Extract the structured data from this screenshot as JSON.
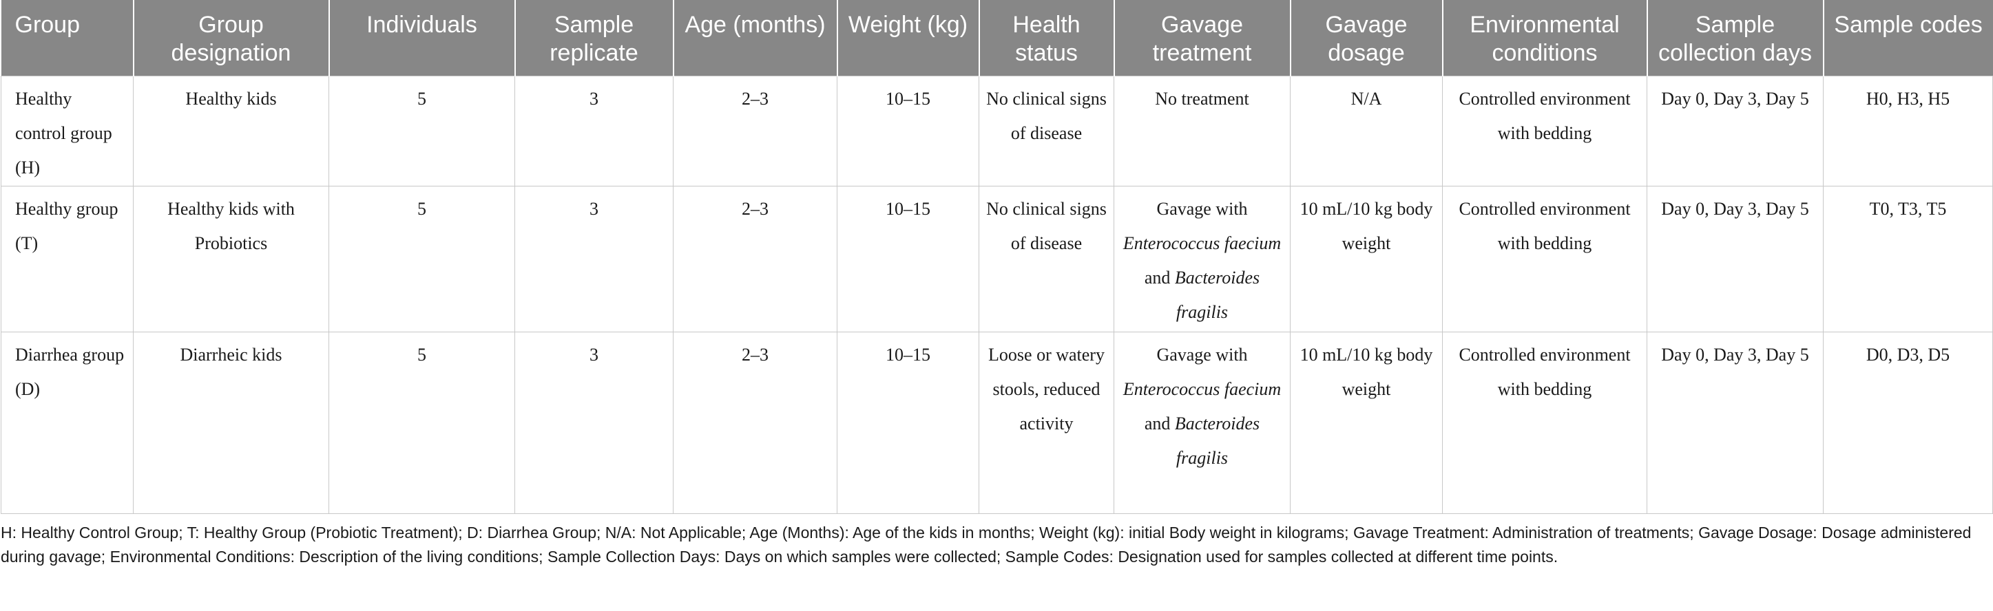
{
  "table": {
    "headers": [
      "Group",
      "Group designation",
      "Individuals",
      "Sample replicate",
      "Age (months)",
      "Weight (kg)",
      "Health status",
      "Gavage treatment",
      "Gavage dosage",
      "Environmental conditions",
      "Sample collection days",
      "Sample codes"
    ],
    "rows": [
      {
        "group": "Healthy control group (H)",
        "designation": "Healthy kids",
        "individuals": "5",
        "replicate": "3",
        "age": "2–3",
        "weight": "10–15",
        "health": "No clinical signs of disease",
        "treatment_plain": "No treatment",
        "dosage": "N/A",
        "environment": "Controlled environment with bedding",
        "days": "Day 0, Day 3, Day 5",
        "codes": "H0, H3, H5"
      },
      {
        "group": "Healthy group (T)",
        "designation": "Healthy kids with Probiotics",
        "individuals": "5",
        "replicate": "3",
        "age": "2–3",
        "weight": "10–15",
        "health": "No clinical signs of disease",
        "treatment_prefix": "Gavage with",
        "treatment_species1": "Enterococcus faecium",
        "treatment_and": "and",
        "treatment_species2": "Bacteroides fragilis",
        "dosage": "10 mL/10 kg body weight",
        "environment": "Controlled environment with bedding",
        "days": "Day 0, Day 3, Day 5",
        "codes": "T0, T3, T5"
      },
      {
        "group": "Diarrhea group (D)",
        "designation": "Diarrheic kids",
        "individuals": "5",
        "replicate": "3",
        "age": "2–3",
        "weight": "10–15",
        "health": "Loose or watery stools, reduced activity",
        "treatment_prefix": "Gavage with",
        "treatment_species1": "Enterococcus faecium",
        "treatment_and": "and",
        "treatment_species2": "Bacteroides fragilis",
        "dosage": "10 mL/10 kg body weight",
        "environment": "Controlled environment with bedding",
        "days": "Day 0, Day 3, Day 5",
        "codes": "D0, D3, D5"
      }
    ]
  },
  "footnote": "H: Healthy Control Group; T: Healthy Group (Probiotic Treatment); D: Diarrhea Group; N/A: Not Applicable; Age (Months): Age of the kids in months; Weight (kg): initial Body weight in kilograms; Gavage Treatment: Administration of treatments; Gavage Dosage: Dosage administered during gavage; Environmental Conditions: Description of the living conditions; Sample Collection Days: Days on which samples were collected; Sample Codes: Designation used for samples collected at different time points."
}
